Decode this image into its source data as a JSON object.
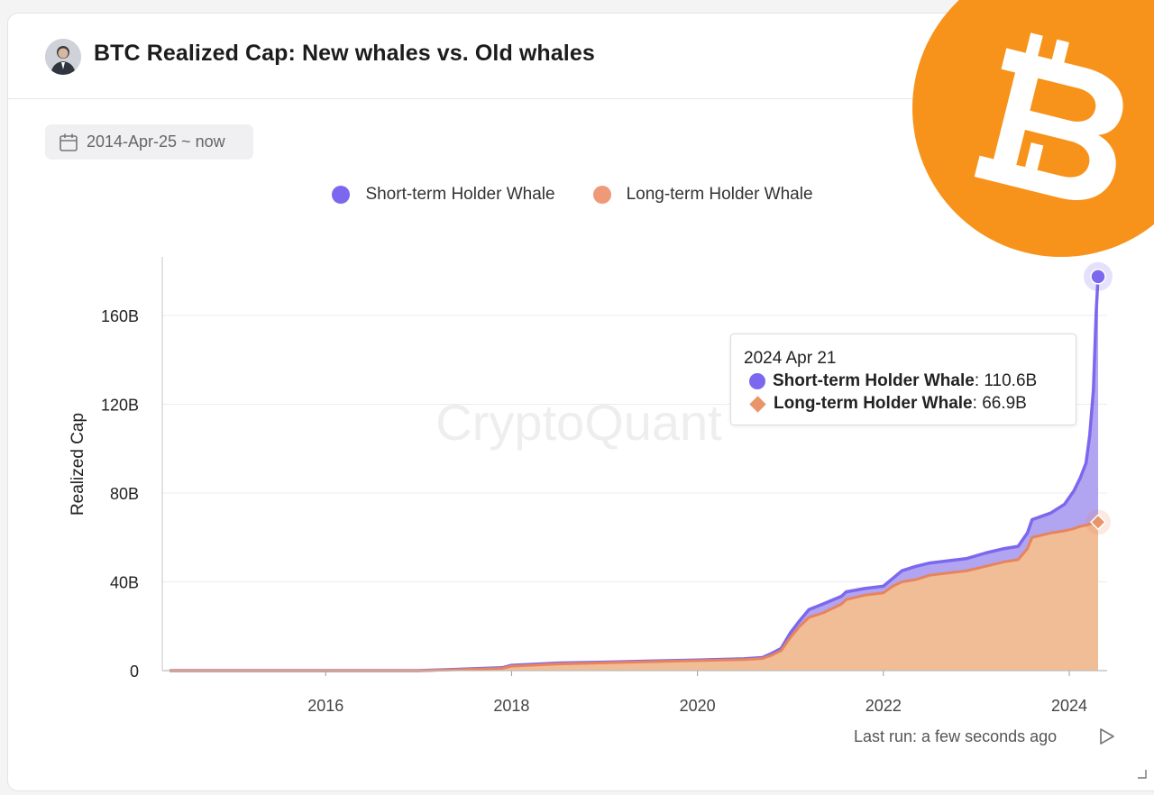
{
  "header": {
    "title": "BTC Realized Cap: New whales vs. Old whales"
  },
  "filter": {
    "date_range": "2014-Apr-25 ~ now"
  },
  "watermark": "CryptoQuant",
  "tooltip": {
    "date": "2024 Apr 21",
    "rows": [
      {
        "label": "Short-term Holder Whale",
        "value": "110.6B"
      },
      {
        "label": "Long-term Holder Whale",
        "value": "66.9B"
      }
    ]
  },
  "footer": {
    "last_run": "Last run: a few seconds ago"
  },
  "colors": {
    "short_term": "#7b68ee",
    "short_term_fill": "#a99af0",
    "long_term": "#e8845c",
    "long_term_fill": "#f0bd96",
    "btc_orange": "#f7931a"
  },
  "chart_data": {
    "type": "area",
    "stacked": true,
    "title": "BTC Realized Cap: New whales vs. Old whales",
    "xlabel": "",
    "ylabel": "Realized Cap",
    "x_ticks": [
      "2016",
      "2018",
      "2020",
      "2022",
      "2024"
    ],
    "y_ticks": [
      "0",
      "40B",
      "80B",
      "120B",
      "160B"
    ],
    "xlim": [
      2014.32,
      2024.31
    ],
    "ylim": [
      0,
      186
    ],
    "y_unit": "B",
    "legend_position": "top-center",
    "x": [
      2014.32,
      2016.0,
      2017.0,
      2017.5,
      2017.9,
      2018.0,
      2018.5,
      2019.0,
      2019.5,
      2020.0,
      2020.5,
      2020.7,
      2020.8,
      2020.9,
      2021.0,
      2021.1,
      2021.2,
      2021.35,
      2021.55,
      2021.6,
      2021.8,
      2022.0,
      2022.1,
      2022.2,
      2022.35,
      2022.5,
      2022.7,
      2022.9,
      2023.1,
      2023.3,
      2023.45,
      2023.55,
      2023.6,
      2023.8,
      2023.95,
      2024.05,
      2024.12,
      2024.18,
      2024.22,
      2024.26,
      2024.29,
      2024.31
    ],
    "series": [
      {
        "name": "Short-term Holder Whale",
        "values": [
          0,
          0,
          0,
          0.2,
          0.3,
          0.4,
          0.4,
          0.3,
          0.3,
          0.3,
          0.3,
          0.4,
          0.8,
          1.0,
          2.0,
          2.5,
          3.5,
          4.0,
          3.5,
          3.5,
          3.0,
          3.0,
          3.5,
          5.0,
          6.0,
          5.5,
          5.5,
          5.5,
          6.0,
          6.0,
          6.0,
          7.0,
          8.0,
          9.0,
          12.0,
          17.0,
          22.0,
          28.0,
          40.0,
          60.0,
          95.0,
          110.6
        ]
      },
      {
        "name": "Long-term Holder Whale",
        "values": [
          0,
          0,
          0,
          0.5,
          1.0,
          2.0,
          3.0,
          3.5,
          4.0,
          4.5,
          5.0,
          5.5,
          7.0,
          9.0,
          15.0,
          20.0,
          24.0,
          26.0,
          30.0,
          32.0,
          34.0,
          35.0,
          38.0,
          40.0,
          41.0,
          43.0,
          44.0,
          45.0,
          47.0,
          49.0,
          50.0,
          55.0,
          60.0,
          62.0,
          63.0,
          64.0,
          65.0,
          65.5,
          66.0,
          66.5,
          66.9,
          66.9
        ]
      }
    ]
  }
}
